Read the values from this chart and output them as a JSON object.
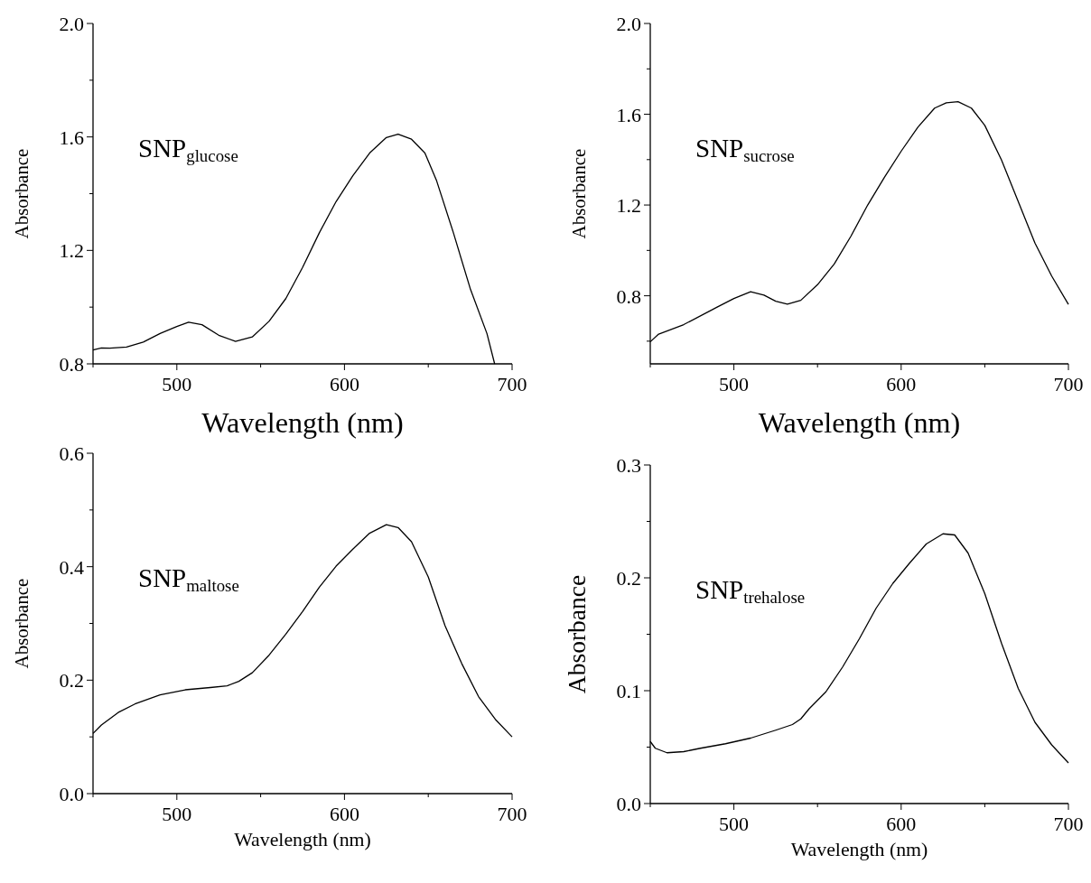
{
  "chart_data": [
    {
      "type": "line",
      "xlabel": "Wavelength (nm)",
      "ylabel": "Absorbance",
      "annotations": [
        "SNP$_{glucose}$"
      ],
      "xlim": [
        450,
        700
      ],
      "ylim": [
        0.8,
        2.0
      ],
      "xticks": [
        {
          "value": 450,
          "label": null
        },
        500,
        {
          "value": 550,
          "label": null
        },
        600,
        {
          "value": 650,
          "label": null
        },
        700
      ],
      "yticks": [
        0.8,
        {
          "value": 1.0,
          "label": null
        },
        1.2,
        {
          "value": 1.4,
          "label": null
        },
        1.6,
        {
          "value": 1.8,
          "label": null
        },
        {
          "value": 2.0,
          "label": "2.0"
        }
      ],
      "grid": false,
      "marker": "none",
      "line_style": "solid",
      "series": [
        {
          "color": "#000000",
          "x": [
            450,
            455,
            460,
            470,
            480,
            490,
            500,
            507,
            515,
            525,
            535,
            545,
            555,
            565,
            575,
            585,
            595,
            605,
            615,
            625,
            632,
            640,
            648,
            655,
            665,
            675,
            685,
            689.6
          ],
          "values": [
            0.849,
            0.856,
            0.855,
            0.859,
            0.877,
            0.907,
            0.932,
            0.947,
            0.938,
            0.901,
            0.879,
            0.895,
            0.95,
            1.03,
            1.14,
            1.262,
            1.372,
            1.463,
            1.543,
            1.598,
            1.61,
            1.592,
            1.543,
            1.445,
            1.262,
            1.066,
            0.907,
            0.8
          ]
        }
      ]
    },
    {
      "type": "line",
      "xlabel": "Wavelength (nm)",
      "ylabel": "Absorbance",
      "annotations": [
        "SNP$_{sucrose}$"
      ],
      "xlim": [
        450,
        700
      ],
      "ylim": [
        0.5,
        2.0
      ],
      "xticks": [
        {
          "value": 450,
          "label": null
        },
        500,
        {
          "value": 550,
          "label": null
        },
        600,
        {
          "value": 650,
          "label": null
        },
        700
      ],
      "yticks": [
        {
          "value": 0.6,
          "label": null
        },
        0.8,
        {
          "value": 1.0,
          "label": null
        },
        1.2,
        {
          "value": 1.4,
          "label": null
        },
        1.6,
        {
          "value": 1.8,
          "label": null
        },
        {
          "value": 2.0,
          "label": "2.0"
        }
      ],
      "grid": false,
      "marker": "none",
      "line_style": "solid",
      "series": [
        {
          "color": "#000000",
          "x": [
            450,
            455,
            470,
            490,
            500,
            510,
            518,
            525,
            532,
            540,
            550,
            560,
            570,
            580,
            590,
            600,
            610,
            620,
            627,
            634,
            642,
            650,
            660,
            670,
            680,
            690,
            700
          ],
          "values": [
            0.597,
            0.631,
            0.673,
            0.75,
            0.788,
            0.818,
            0.803,
            0.776,
            0.763,
            0.78,
            0.849,
            0.94,
            1.063,
            1.2,
            1.322,
            1.437,
            1.543,
            1.627,
            1.65,
            1.655,
            1.627,
            1.551,
            1.398,
            1.215,
            1.032,
            0.887,
            0.762
          ]
        }
      ]
    },
    {
      "type": "line",
      "xlabel": "Wavelength (nm)",
      "ylabel": "Absorbance",
      "annotations": [
        "SNP$_{maltose}$"
      ],
      "xlim": [
        450,
        700
      ],
      "ylim": [
        0,
        0.6
      ],
      "xticks": [
        {
          "value": 450,
          "label": null
        },
        500,
        {
          "value": 550,
          "label": null
        },
        600,
        {
          "value": 650,
          "label": null
        },
        700
      ],
      "yticks": [
        {
          "value": 0,
          "label": "0.0"
        },
        {
          "value": 0.1,
          "label": null
        },
        0.2,
        {
          "value": 0.3,
          "label": null
        },
        0.4,
        {
          "value": 0.5,
          "label": null
        },
        0.6
      ],
      "grid": false,
      "marker": "none",
      "line_style": "solid",
      "series": [
        {
          "color": "#000000",
          "x": [
            450,
            455,
            465,
            475,
            490,
            505,
            520,
            530,
            537,
            545,
            555,
            565,
            575,
            585,
            595,
            605,
            615,
            625,
            632,
            640,
            650,
            660,
            670,
            680,
            690,
            700
          ],
          "values": [
            0.106,
            0.121,
            0.143,
            0.158,
            0.174,
            0.183,
            0.187,
            0.19,
            0.198,
            0.213,
            0.244,
            0.281,
            0.321,
            0.364,
            0.401,
            0.431,
            0.459,
            0.474,
            0.469,
            0.444,
            0.382,
            0.296,
            0.229,
            0.171,
            0.131,
            0.1
          ]
        }
      ]
    },
    {
      "type": "line",
      "xlabel": "Wavelength (nm)",
      "ylabel": "Absorbance",
      "annotations": [
        "SNP$_{trehalose}$"
      ],
      "xlim": [
        450,
        700
      ],
      "ylim": [
        0,
        0.3
      ],
      "xticks": [
        {
          "value": 450,
          "label": null
        },
        500,
        {
          "value": 550,
          "label": null
        },
        600,
        {
          "value": 650,
          "label": null
        },
        700
      ],
      "yticks": [
        {
          "value": 0,
          "label": "0.0"
        },
        {
          "value": 0.05,
          "label": null
        },
        0.1,
        {
          "value": 0.15,
          "label": null
        },
        0.2,
        {
          "value": 0.25,
          "label": null
        },
        0.3
      ],
      "grid": false,
      "marker": "none",
      "line_style": "solid",
      "series": [
        {
          "color": "#000000",
          "x": [
            450,
            453,
            460,
            470,
            480,
            495,
            510,
            525,
            535,
            540,
            545,
            555,
            565,
            575,
            585,
            595,
            605,
            615,
            625,
            632,
            640,
            650,
            660,
            670,
            680,
            690,
            700
          ],
          "values": [
            0.055,
            0.049,
            0.045,
            0.046,
            0.049,
            0.053,
            0.058,
            0.065,
            0.07,
            0.075,
            0.084,
            0.099,
            0.121,
            0.146,
            0.173,
            0.195,
            0.213,
            0.23,
            0.239,
            0.238,
            0.222,
            0.186,
            0.142,
            0.102,
            0.072,
            0.052,
            0.036
          ]
        }
      ]
    }
  ]
}
